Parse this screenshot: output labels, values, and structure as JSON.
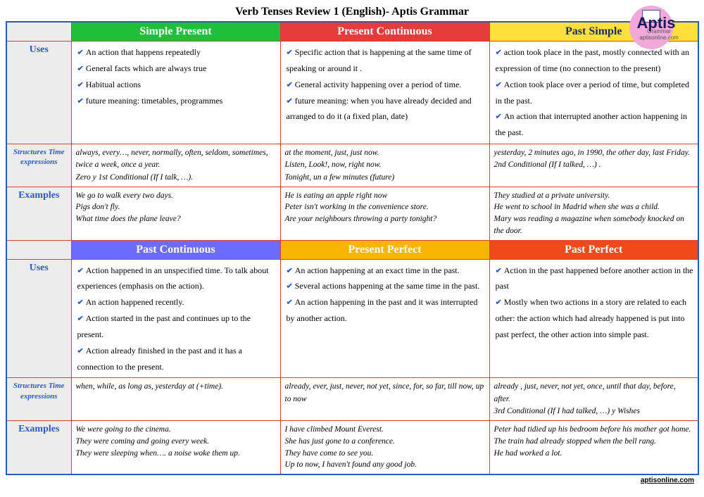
{
  "title": "Verb Tenses Review 1 (English)- Aptis Grammar",
  "logo": {
    "brand": "Aptis",
    "sub1": "Grammar",
    "sub2": "aptisonline.com"
  },
  "footer": "aptisonline.com",
  "row_labels": {
    "uses": "Uses",
    "structures": "Structures Time expressions",
    "examples": "Examples"
  },
  "header_colors": {
    "r1c1": "#1fbf3a",
    "r1c2": "#e63b3b",
    "r1c3": "#ffe03a",
    "r2c1": "#6b6bff",
    "r2c2": "#f7b500",
    "r2c3": "#f04a1a"
  },
  "header_text_colors": {
    "r1c1": "#ffffff",
    "r1c2": "#ffffff",
    "r1c3": "#1a2a6b",
    "r2c1": "#ffffff",
    "r2c2": "#ffffff",
    "r2c3": "#ffffff"
  },
  "tenses": {
    "r1c1": {
      "name": "Simple Present",
      "uses": [
        "An action that happens repeatedly",
        "General facts which are always true",
        "Habitual actions",
        "future meaning: timetables, programmes"
      ],
      "structures": "always, every…, never, normally, often, seldom, sometimes, twice a week, once a year.\nZero y 1st Conditional (If I talk, …).",
      "examples": "We go to walk every two days.\nPigs don't fly.\nWhat time does the plane leave?"
    },
    "r1c2": {
      "name": "Present Continuous",
      "uses": [
        "Specific action that is happening at the same time of speaking or around it .",
        "General activity happening over a period of time.",
        "future meaning: when you have already decided and arranged to do it (a fixed plan, date)"
      ],
      "structures": "at the moment, just, just now.\nListen, Look!, now, right now.\nTonight, un a few minutes (future)",
      "examples": "He is eating an apple right now\nPeter isn't working in the convenience store.\nAre your neighbours throwing a party tonight?"
    },
    "r1c3": {
      "name": "Past Simple",
      "uses": [
        "action took place in the past, mostly connected with an expression of time (no connection to the present)",
        "Action took place over a period of time, but completed in the past.",
        "An action that interrupted another action happening in the past."
      ],
      "structures": "yesterday, 2 minutes ago, in 1990, the other day, last Friday.\n2nd Conditional (If I talked, …) .",
      "examples": "They studied at a private university.\nHe went to school in Madrid when she was a child.\nMary was reading a magazine when somebody knocked on the door."
    },
    "r2c1": {
      "name": "Past Continuous",
      "uses": [
        "Action happened in an unspecified time. To talk about experiences (emphasis on the action).",
        "An action happened recently.",
        "Action started in the past and continues up to the present.",
        "Action already finished in the past and it has a connection to the present."
      ],
      "structures": "when, while, as long as, yesterday at (+time).",
      "examples": "We were going to the cinema.\nThey were coming and going every week.\nThey were sleeping when…. a noise woke them up."
    },
    "r2c2": {
      "name": "Present Perfect",
      "uses": [
        "An action happening at an exact time in the past.",
        "Several actions happening at the same time in the past.",
        "An action happening in the past and it was interrupted by another action."
      ],
      "structures": "already, ever, just, never, not yet, since, for, so far, till now, up to now",
      "examples": "I have climbed Mount Everest.\nShe has just gone to a conference.\nThey have come to see you.\nUp to now, I haven't found any good job."
    },
    "r2c3": {
      "name": "Past Perfect",
      "uses": [
        "Action in the past happened before another action in the past",
        "Mostly when two actions in a story are related to each other: the action which had already happened is put into past perfect, the other action into simple past."
      ],
      "structures": "already , just, never, not yet, once, until that day, before, after.\n3rd Conditional (If I had talked, …) y Wishes",
      "examples": " Peter had tidied up his bedroom before his mother got home.\nThe train had already stopped when the bell rang.\nHe had worked a lot."
    }
  }
}
